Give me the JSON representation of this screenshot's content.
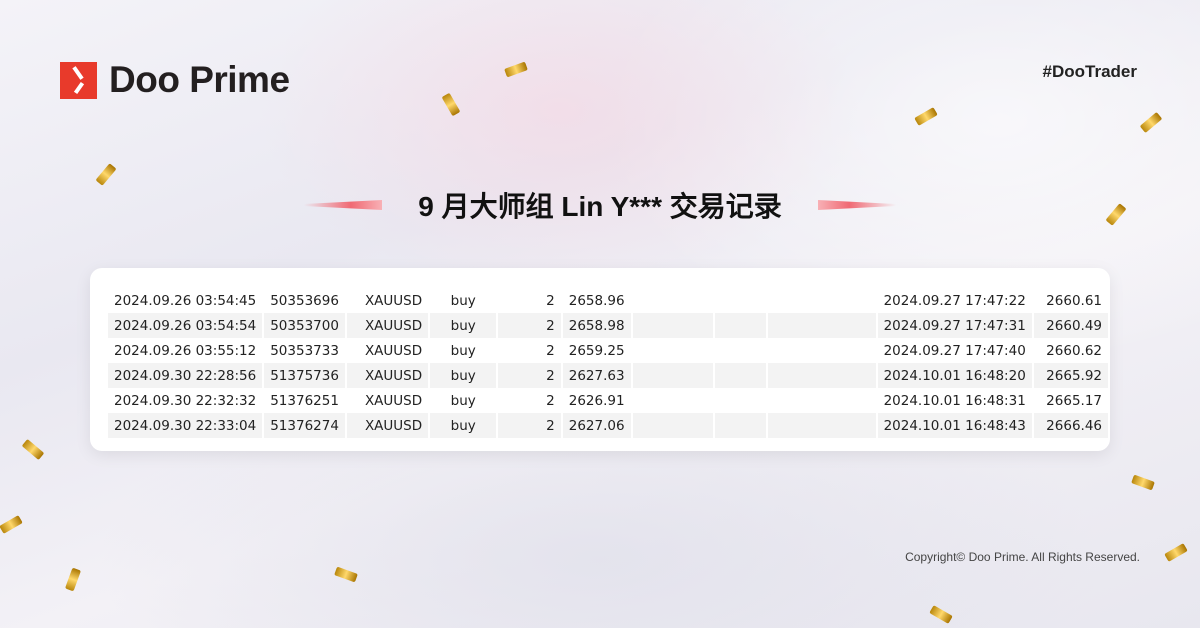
{
  "brand": {
    "name": "Doo Prime",
    "hashtag": "#DooTrader"
  },
  "title": "9 月大师组 Lin Y*** 交易记录",
  "trades": [
    [
      "2024.09.26 03:54:45",
      "50353696",
      "XAUUSD",
      "buy",
      "2",
      "2658.96",
      "",
      "",
      "",
      "2024.09.27 17:47:22",
      "2660.61"
    ],
    [
      "2024.09.26 03:54:54",
      "50353700",
      "XAUUSD",
      "buy",
      "2",
      "2658.98",
      "",
      "",
      "",
      "2024.09.27 17:47:31",
      "2660.49"
    ],
    [
      "2024.09.26 03:55:12",
      "50353733",
      "XAUUSD",
      "buy",
      "2",
      "2659.25",
      "",
      "",
      "",
      "2024.09.27 17:47:40",
      "2660.62"
    ],
    [
      "2024.09.30 22:28:56",
      "51375736",
      "XAUUSD",
      "buy",
      "2",
      "2627.63",
      "",
      "",
      "",
      "2024.10.01 16:48:20",
      "2665.92"
    ],
    [
      "2024.09.30 22:32:32",
      "51376251",
      "XAUUSD",
      "buy",
      "2",
      "2626.91",
      "",
      "",
      "",
      "2024.10.01 16:48:31",
      "2665.17"
    ],
    [
      "2024.09.30 22:33:04",
      "51376274",
      "XAUUSD",
      "buy",
      "2",
      "2627.06",
      "",
      "",
      "",
      "2024.10.01 16:48:43",
      "2666.46"
    ]
  ],
  "footer": {
    "copyright": "Copyright© Doo Prime. All Rights Reserved."
  },
  "colors": {
    "brand_red": "#e83a2b",
    "confetti": "#d4a017"
  }
}
